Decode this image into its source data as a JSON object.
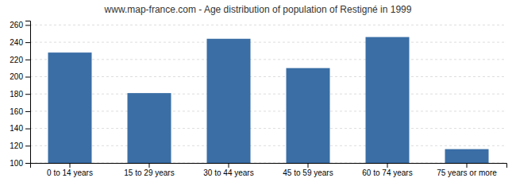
{
  "chart_data": {
    "type": "bar",
    "title": "www.map-france.com - Age distribution of population of Restigné in 1999",
    "categories": [
      "0 to 14 years",
      "15 to 29 years",
      "30 to 44 years",
      "45 to 59 years",
      "60 to 74 years",
      "75 years or more"
    ],
    "values": [
      228,
      181,
      244,
      210,
      246,
      116
    ],
    "color": "#3a6ea5",
    "ylim": [
      100,
      265
    ],
    "yticks": [
      100,
      120,
      140,
      160,
      180,
      200,
      220,
      240,
      260
    ],
    "grid": true
  }
}
